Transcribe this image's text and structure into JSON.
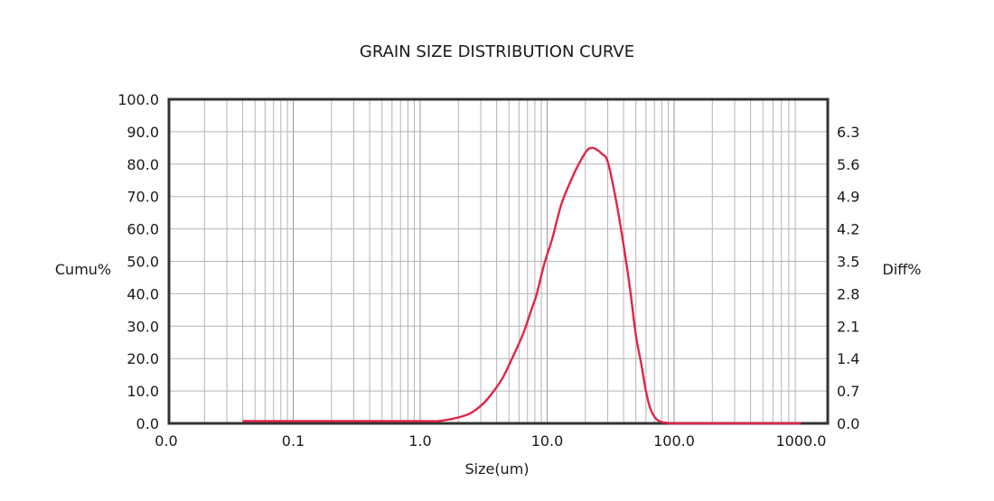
{
  "chart_data": {
    "type": "line",
    "title": "GRAIN SIZE DISTRIBUTION CURVE",
    "xlabel": "Size(um)",
    "ylabel_left": "Cumu%",
    "ylabel_right": "Diff%",
    "x_scale": "log",
    "x_ticks": [
      "0.0",
      "0.1",
      "1.0",
      "10.0",
      "100.0",
      "1000.0"
    ],
    "y_left_ticks": [
      "0.0",
      "10.0",
      "20.0",
      "30.0",
      "40.0",
      "50.0",
      "60.0",
      "70.0",
      "80.0",
      "90.0",
      "100.0"
    ],
    "y_right_ticks": [
      "0.0",
      "0.7",
      "1.4",
      "2.1",
      "2.8",
      "3.5",
      "4.2",
      "4.9",
      "5.6",
      "6.3"
    ],
    "y_left_range": [
      0,
      100
    ],
    "y_right_range": [
      0,
      7
    ],
    "grid": true,
    "line_color": "#e0254a",
    "series": [
      {
        "axis": "right",
        "x": [
          0.04,
          0.1,
          0.5,
          1.0,
          1.4,
          1.8,
          2.2,
          2.6,
          3.2,
          3.8,
          4.5,
          5.5,
          6.5,
          7.5,
          8.3,
          9.5,
          11,
          13,
          16,
          19,
          21,
          23,
          25,
          27,
          30,
          35,
          40,
          45,
          50,
          55,
          60,
          65,
          72,
          80,
          90,
          100,
          200,
          500,
          1000
        ],
        "y": [
          0.05,
          0.05,
          0.05,
          0.05,
          0.05,
          0.1,
          0.16,
          0.25,
          0.45,
          0.7,
          1.0,
          1.5,
          1.95,
          2.45,
          2.8,
          3.45,
          4.0,
          4.75,
          5.35,
          5.75,
          5.92,
          5.95,
          5.9,
          5.82,
          5.65,
          4.8,
          3.85,
          2.9,
          1.9,
          1.3,
          0.7,
          0.32,
          0.1,
          0.03,
          0.01,
          0.0,
          0.0,
          0.0,
          0.0
        ]
      }
    ]
  }
}
